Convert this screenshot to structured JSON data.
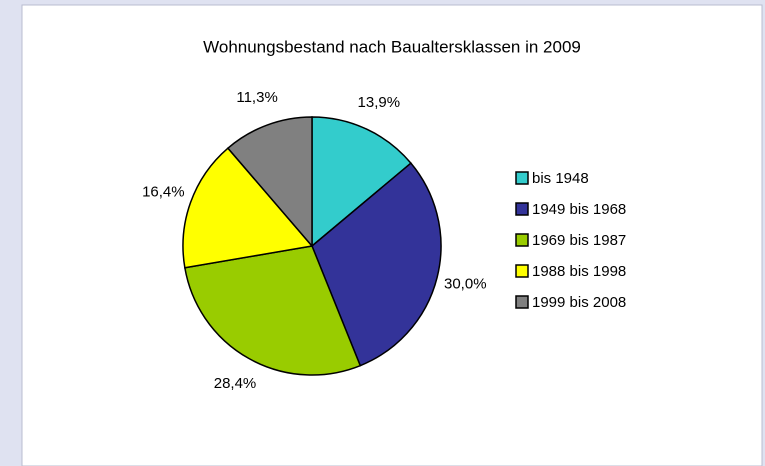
{
  "chart_data": {
    "type": "pie",
    "title": "Wohnungsbestand nach Baualtersklassen in 2009",
    "categories": [
      "bis 1948",
      "1949 bis 1968",
      "1969 bis 1987",
      "1988 bis 1998",
      "1999 bis 2008"
    ],
    "values": [
      13.9,
      30.0,
      28.4,
      16.4,
      11.3
    ],
    "value_labels": [
      "13,9%",
      "30,0%",
      "28,4%",
      "16,4%",
      "11,3%"
    ],
    "colors": [
      "#33cccc",
      "#333399",
      "#99cc00",
      "#ffff00",
      "#808080"
    ],
    "legend": "right"
  }
}
